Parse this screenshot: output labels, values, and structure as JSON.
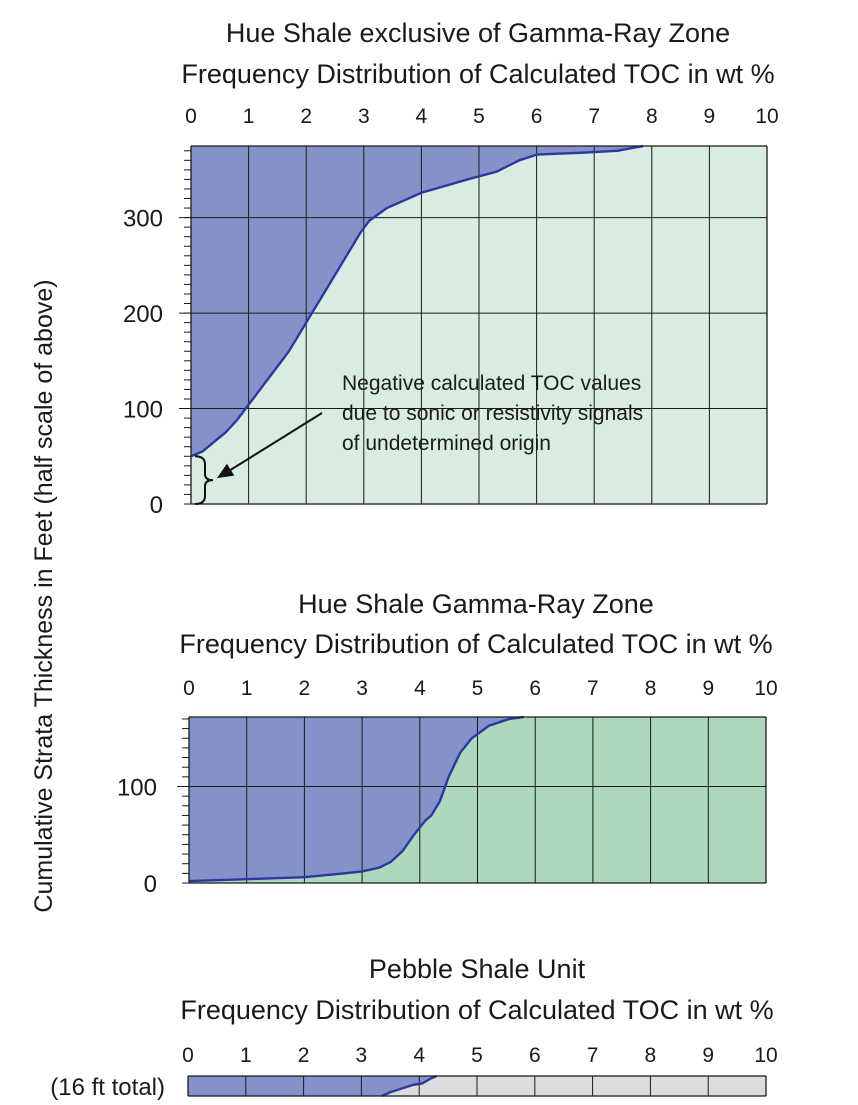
{
  "colors": {
    "above_fill": "#8592c9",
    "curve": "#2e37a0",
    "grid": "#1a1a1a",
    "panel1_below": "#d9ece1",
    "panel2_below": "#acd9bc",
    "panel3_below": "#dcdcdc"
  },
  "figure": {
    "ylabel": "Cumulative Strata Thickness in Feet (half scale of above)"
  },
  "chart_data": [
    {
      "type": "area",
      "title_line1": "Hue Shale exclusive of Gamma-Ray Zone",
      "title_line2": "Frequency Distribution of Calculated TOC in wt %",
      "x_axis_position": "top",
      "xlim": [
        0,
        10
      ],
      "ylim": [
        0,
        375
      ],
      "xticks": [
        "0",
        "1",
        "2",
        "3",
        "4",
        "5",
        "6",
        "7",
        "8",
        "9",
        "10"
      ],
      "yticks": [
        {
          "value": 0,
          "label": "0"
        },
        {
          "value": 100,
          "label": "100"
        },
        {
          "value": 200,
          "label": "200"
        },
        {
          "value": 300,
          "label": "300"
        }
      ],
      "y_minor_step": 10,
      "hgrid": [
        100,
        200,
        300
      ],
      "curve": [
        [
          0.0,
          50
        ],
        [
          0.2,
          55
        ],
        [
          0.4,
          65
        ],
        [
          0.6,
          75
        ],
        [
          0.8,
          88
        ],
        [
          0.95,
          100
        ],
        [
          1.2,
          120
        ],
        [
          1.45,
          140
        ],
        [
          1.7,
          160
        ],
        [
          1.95,
          185
        ],
        [
          2.15,
          205
        ],
        [
          2.35,
          225
        ],
        [
          2.55,
          245
        ],
        [
          2.75,
          265
        ],
        [
          2.95,
          285
        ],
        [
          3.1,
          297
        ],
        [
          3.4,
          310
        ],
        [
          3.7,
          318
        ],
        [
          4.0,
          326
        ],
        [
          4.4,
          333
        ],
        [
          4.8,
          340
        ],
        [
          5.3,
          348
        ],
        [
          5.7,
          360
        ],
        [
          6.0,
          366
        ],
        [
          6.8,
          368
        ],
        [
          7.4,
          370
        ],
        [
          7.85,
          375
        ]
      ],
      "annotation": {
        "lines": [
          "Negative calculated TOC values",
          "due to sonic or resistivity signals",
          "of undetermined origin"
        ],
        "bracket_range": [
          0,
          50
        ]
      }
    },
    {
      "type": "area",
      "title_line1": "Hue Shale Gamma-Ray Zone",
      "title_line2": "Frequency Distribution of Calculated TOC in wt %",
      "x_axis_position": "top",
      "xlim": [
        0,
        10
      ],
      "ylim": [
        0,
        172
      ],
      "xticks": [
        "0",
        "1",
        "2",
        "3",
        "4",
        "5",
        "6",
        "7",
        "8",
        "9",
        "10"
      ],
      "yticks": [
        {
          "value": 0,
          "label": "0"
        },
        {
          "value": 100,
          "label": "100"
        }
      ],
      "y_minor_step": 10,
      "hgrid": [
        100
      ],
      "curve": [
        [
          0.0,
          2
        ],
        [
          1.0,
          4
        ],
        [
          2.0,
          6
        ],
        [
          2.7,
          10
        ],
        [
          3.0,
          12
        ],
        [
          3.3,
          16
        ],
        [
          3.5,
          22
        ],
        [
          3.7,
          33
        ],
        [
          3.9,
          50
        ],
        [
          4.1,
          65
        ],
        [
          4.2,
          70
        ],
        [
          4.35,
          85
        ],
        [
          4.5,
          110
        ],
        [
          4.7,
          135
        ],
        [
          4.9,
          150
        ],
        [
          5.2,
          163
        ],
        [
          5.55,
          170
        ],
        [
          5.8,
          172
        ]
      ]
    },
    {
      "type": "area",
      "title_line1": "Pebble Shale Unit",
      "title_line2": "Frequency Distribution of Calculated TOC in wt %",
      "x_axis_position": "top",
      "xlim": [
        0,
        10
      ],
      "ylim": [
        0,
        16
      ],
      "xticks": [
        "0",
        "1",
        "2",
        "3",
        "4",
        "5",
        "6",
        "7",
        "8",
        "9",
        "10"
      ],
      "row_label": "(16 ft total)",
      "curve": [
        [
          3.35,
          0
        ],
        [
          3.5,
          3
        ],
        [
          3.7,
          6
        ],
        [
          3.9,
          9
        ],
        [
          4.05,
          10
        ],
        [
          4.2,
          14
        ],
        [
          4.3,
          16
        ]
      ]
    }
  ]
}
